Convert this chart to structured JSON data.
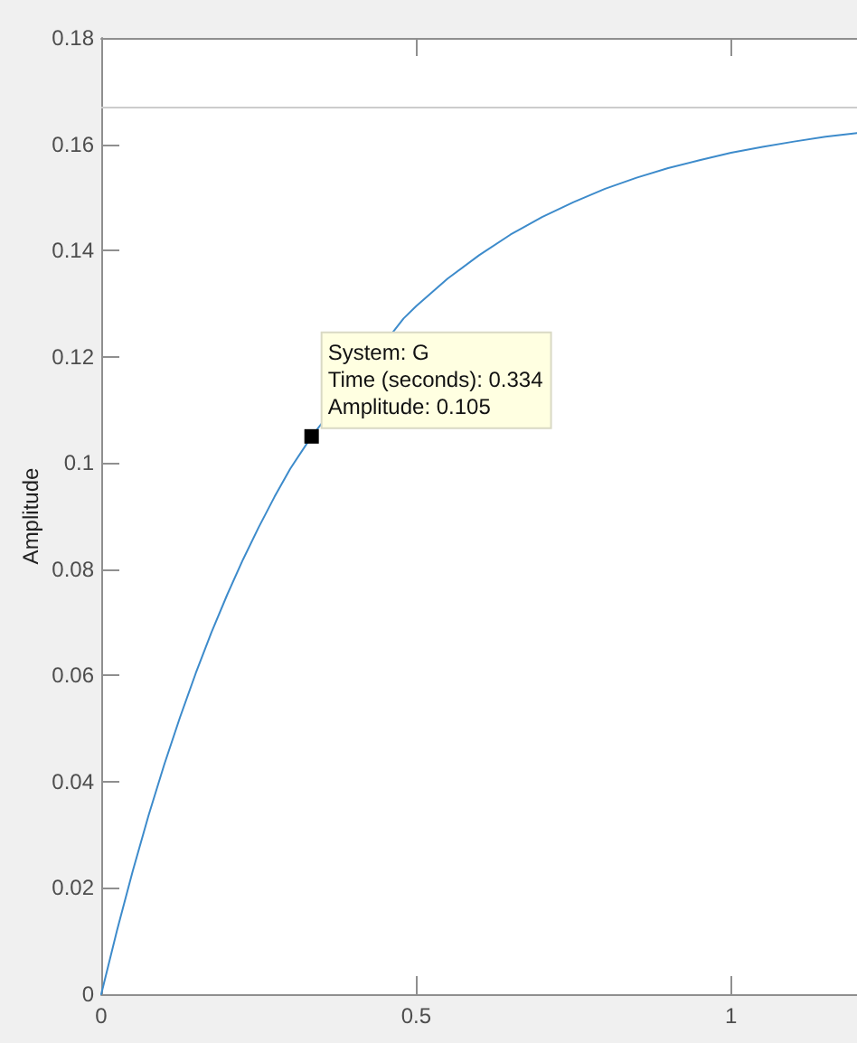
{
  "chart_data": {
    "type": "line",
    "ylabel": "Amplitude",
    "x": [
      0,
      0.025,
      0.05,
      0.075,
      0.1,
      0.125,
      0.15,
      0.175,
      0.2,
      0.225,
      0.25,
      0.275,
      0.3,
      0.334,
      0.48,
      0.5,
      0.55,
      0.6,
      0.65,
      0.7,
      0.75,
      0.8,
      0.85,
      0.9,
      0.95,
      1.0,
      1.05,
      1.1,
      1.15,
      1.2
    ],
    "series": [
      {
        "color": "#3d8bcb",
        "values": [
          0,
          0.012,
          0.0232,
          0.0336,
          0.0432,
          0.0521,
          0.0604,
          0.0681,
          0.0752,
          0.0818,
          0.0879,
          0.0936,
          0.0989,
          0.105,
          0.1272,
          0.1295,
          0.1347,
          0.1391,
          0.143,
          0.1463,
          0.1491,
          0.1516,
          0.1537,
          0.1555,
          0.157,
          0.1584,
          0.1595,
          0.1605,
          0.1614,
          0.1621
        ]
      }
    ],
    "xlim": [
      0,
      1.2
    ],
    "xticks": [
      0,
      0.5,
      1
    ],
    "ylim": [
      0,
      0.18
    ],
    "yticks": [
      0,
      0.02,
      0.04,
      0.06,
      0.08,
      0.1,
      0.12,
      0.14,
      0.16,
      0.18
    ],
    "ref_lines": [
      {
        "axis": "y",
        "value": 0.167,
        "color": "#cccccc",
        "line_style": "solid"
      }
    ],
    "annotations": [
      {
        "text": "System: G\nTime (seconds): 0.334\nAmplitude: 0.105",
        "x": 0.334,
        "y": 0.105
      }
    ],
    "marker": "none",
    "line_style": "solid"
  }
}
